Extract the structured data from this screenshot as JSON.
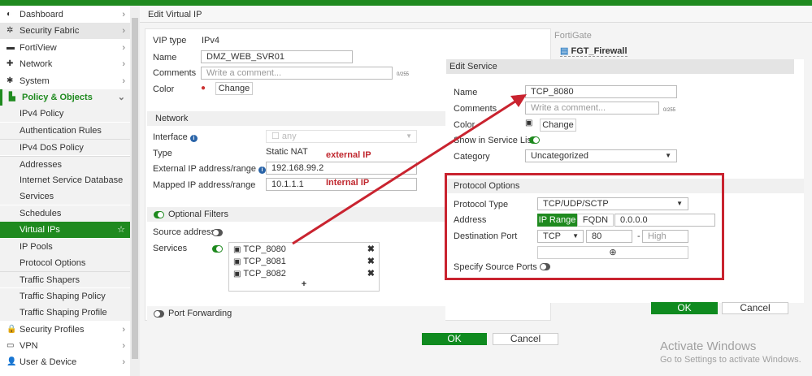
{
  "sidebar": {
    "items": [
      {
        "label": "Dashboard",
        "icon": "dashboard-icon",
        "glyph": "◐"
      },
      {
        "label": "Security Fabric",
        "icon": "security-fabric-icon",
        "glyph": "✲"
      },
      {
        "label": "FortiView",
        "icon": "fortiview-icon",
        "glyph": "▬"
      },
      {
        "label": "Network",
        "icon": "network-icon",
        "glyph": "✚"
      },
      {
        "label": "System",
        "icon": "gear-icon",
        "glyph": "✱"
      },
      {
        "label": "Policy & Objects",
        "icon": "policy-icon",
        "glyph": "▙"
      },
      {
        "label": "IPv4 Policy"
      },
      {
        "label": "Authentication Rules"
      },
      {
        "label": "IPv4 DoS Policy"
      },
      {
        "label": "Addresses"
      },
      {
        "label": "Internet Service Database"
      },
      {
        "label": "Services"
      },
      {
        "label": "Schedules"
      },
      {
        "label": "Virtual IPs"
      },
      {
        "label": "IP Pools"
      },
      {
        "label": "Protocol Options"
      },
      {
        "label": "Traffic Shapers"
      },
      {
        "label": "Traffic Shaping Policy"
      },
      {
        "label": "Traffic Shaping Profile"
      },
      {
        "label": "Security Profiles",
        "icon": "lock-icon",
        "glyph": "🔒"
      },
      {
        "label": "VPN",
        "icon": "laptop-icon",
        "glyph": "▭"
      },
      {
        "label": "User & Device",
        "icon": "user-icon",
        "glyph": "👤"
      }
    ]
  },
  "vip": {
    "title": "Edit Virtual IP",
    "vip_type_label": "VIP type",
    "vip_type": "IPv4",
    "name_label": "Name",
    "name": "DMZ_WEB_SVR01",
    "comments_label": "Comments",
    "comments_placeholder": "Write a comment...",
    "counter": "0/255",
    "color_label": "Color",
    "change": "Change",
    "network_title": "Network",
    "interface_label": "Interface",
    "interface": "any",
    "type_label": "Type",
    "type": "Static NAT",
    "ext_label": "External IP address/range",
    "ext": "192.168.99.2",
    "mapped_label": "Mapped IP address/range",
    "mapped": "10.1.1.1",
    "ext_note": "external IP",
    "int_note": "Internal IP",
    "optional_filters": "Optional Filters",
    "source_address": "Source address",
    "services_label": "Services",
    "services": [
      "TCP_8080",
      "TCP_8081",
      "TCP_8082"
    ],
    "add": "+",
    "port_forwarding": "Port Forwarding",
    "ok": "OK",
    "cancel": "Cancel"
  },
  "fortigate": {
    "label": "FortiGate",
    "device": "FGT_Firewall"
  },
  "service": {
    "title": "Edit Service",
    "name_label": "Name",
    "name": "TCP_8080",
    "comments_label": "Comments",
    "comments_placeholder": "Write a comment...",
    "counter": "0/255",
    "color_label": "Color",
    "change": "Change",
    "show_label": "Show in Service List",
    "category_label": "Category",
    "category": "Uncategorized",
    "protocol_title": "Protocol Options",
    "ptype_label": "Protocol Type",
    "ptype": "TCP/UDP/SCTP",
    "address_label": "Address",
    "ip_range": "IP Range",
    "fqdn": "FQDN",
    "address": "0.0.0.0",
    "dport_label": "Destination Port",
    "proto": "TCP",
    "low": "80",
    "dash": "-",
    "high_placeholder": "High",
    "src_ports": "Specify Source Ports",
    "ok": "OK",
    "cancel": "Cancel"
  },
  "watermark": {
    "line1": "Activate Windows",
    "line2": "Go to Settings to activate Windows."
  },
  "colors": {
    "brand": "#1f8a1f",
    "annotation": "#c0282f"
  }
}
